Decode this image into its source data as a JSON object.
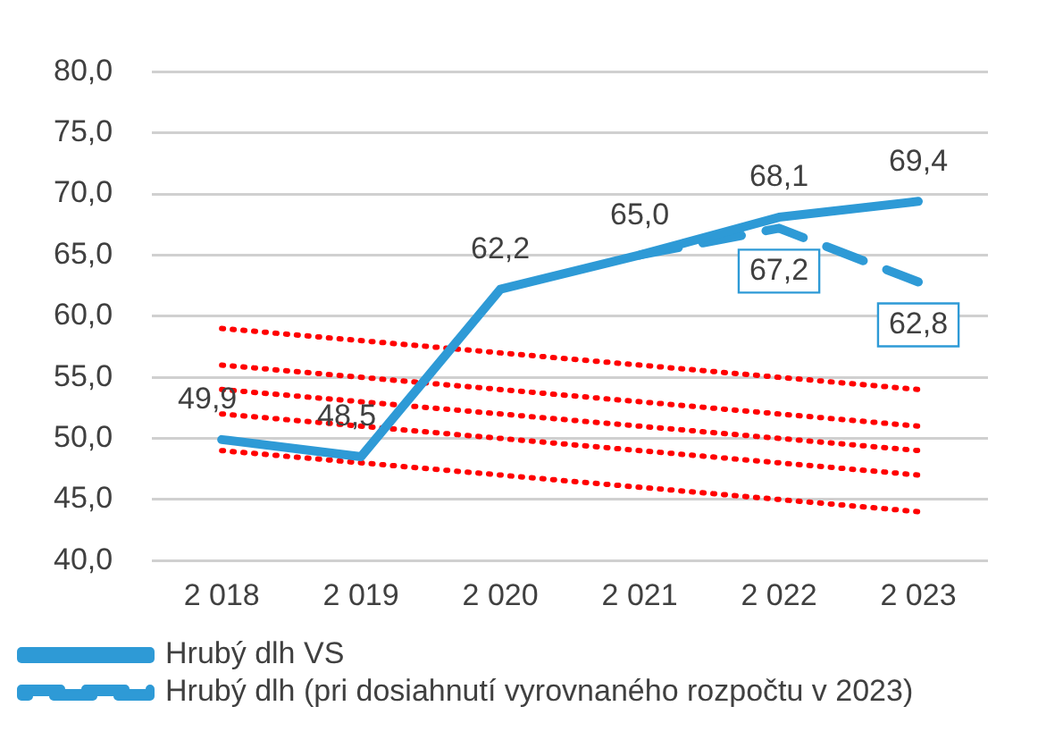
{
  "chart_data": {
    "type": "line",
    "categories": [
      "2 018",
      "2 019",
      "2 020",
      "2 021",
      "2 022",
      "2 023"
    ],
    "ylim": [
      40,
      80
    ],
    "yticks": [
      {
        "value": 40,
        "label": "40,0"
      },
      {
        "value": 45,
        "label": "45,0"
      },
      {
        "value": 50,
        "label": "50,0"
      },
      {
        "value": 55,
        "label": "55,0"
      },
      {
        "value": 60,
        "label": "60,0"
      },
      {
        "value": 65,
        "label": "65,0"
      },
      {
        "value": 70,
        "label": "70,0"
      },
      {
        "value": 75,
        "label": "75,0"
      },
      {
        "value": 80,
        "label": "80,0"
      }
    ],
    "grid": "y",
    "legend": "bottom",
    "marker": "none",
    "series": [
      {
        "name": "Hrubý dlh VS",
        "color": "#2e9ad6",
        "line_style": "solid",
        "values": [
          49.9,
          48.5,
          62.2,
          65.0,
          68.1,
          69.4
        ],
        "value_labels": [
          "49,9",
          "48,5",
          "62,2",
          "65,0",
          "68,1",
          "69,4"
        ]
      },
      {
        "name": "Hrubý dlh (pri dosiahnutí vyrovnaného rozpočtu v 2023)",
        "color": "#2e9ad6",
        "line_style": "dashed",
        "values": [
          null,
          null,
          null,
          65.0,
          67.2,
          62.8
        ],
        "value_labels": [
          null,
          null,
          null,
          null,
          "67,2",
          "62,8"
        ]
      },
      {
        "color": "#ff0000",
        "line_style": "dotted",
        "values": [
          59,
          null,
          null,
          null,
          null,
          54
        ]
      },
      {
        "color": "#ff0000",
        "line_style": "dotted",
        "values": [
          56,
          null,
          null,
          null,
          null,
          51
        ]
      },
      {
        "color": "#ff0000",
        "line_style": "dotted",
        "values": [
          54,
          null,
          null,
          null,
          null,
          49
        ]
      },
      {
        "color": "#ff0000",
        "line_style": "dotted",
        "values": [
          52,
          null,
          null,
          null,
          null,
          47
        ]
      },
      {
        "color": "#ff0000",
        "line_style": "dotted",
        "values": [
          49,
          null,
          null,
          null,
          null,
          44
        ]
      }
    ]
  }
}
